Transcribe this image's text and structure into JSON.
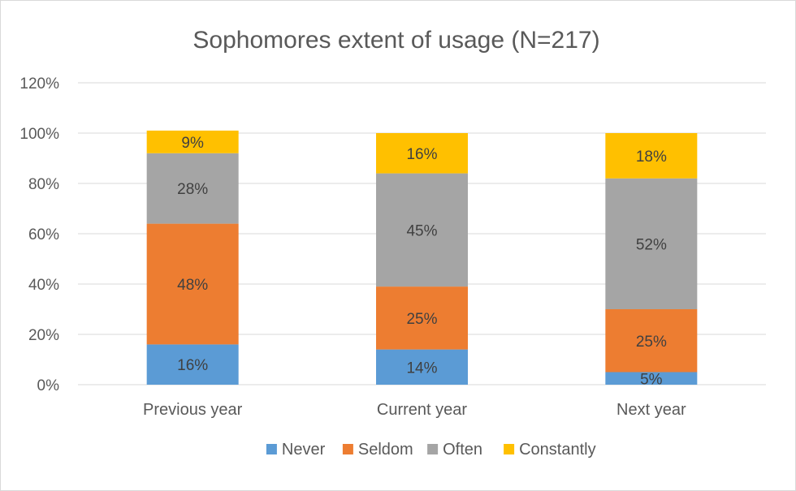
{
  "chart_data": {
    "type": "bar",
    "stacked": true,
    "title": "Sophomores extent of usage (N=217)",
    "categories": [
      "Previous year",
      "Current year",
      "Next year"
    ],
    "series": [
      {
        "name": "Never",
        "color": "#5b9bd5",
        "values": [
          16,
          14,
          5
        ],
        "labels": [
          "16%",
          "14%",
          "5%"
        ]
      },
      {
        "name": "Seldom",
        "color": "#ed7d31",
        "values": [
          48,
          25,
          25
        ],
        "labels": [
          "48%",
          "25%",
          "25%"
        ]
      },
      {
        "name": "Often",
        "color": "#a5a5a5",
        "values": [
          28,
          45,
          52
        ],
        "labels": [
          "28%",
          "45%",
          "52%"
        ]
      },
      {
        "name": "Constantly",
        "color": "#ffc000",
        "values": [
          9,
          16,
          18
        ],
        "labels": [
          "9%",
          "16%",
          "18%"
        ]
      }
    ],
    "ylim": [
      0,
      120
    ],
    "yticks": [
      "0%",
      "20%",
      "40%",
      "60%",
      "80%",
      "100%",
      "120%"
    ],
    "grid": true,
    "legend_position": "bottom"
  }
}
